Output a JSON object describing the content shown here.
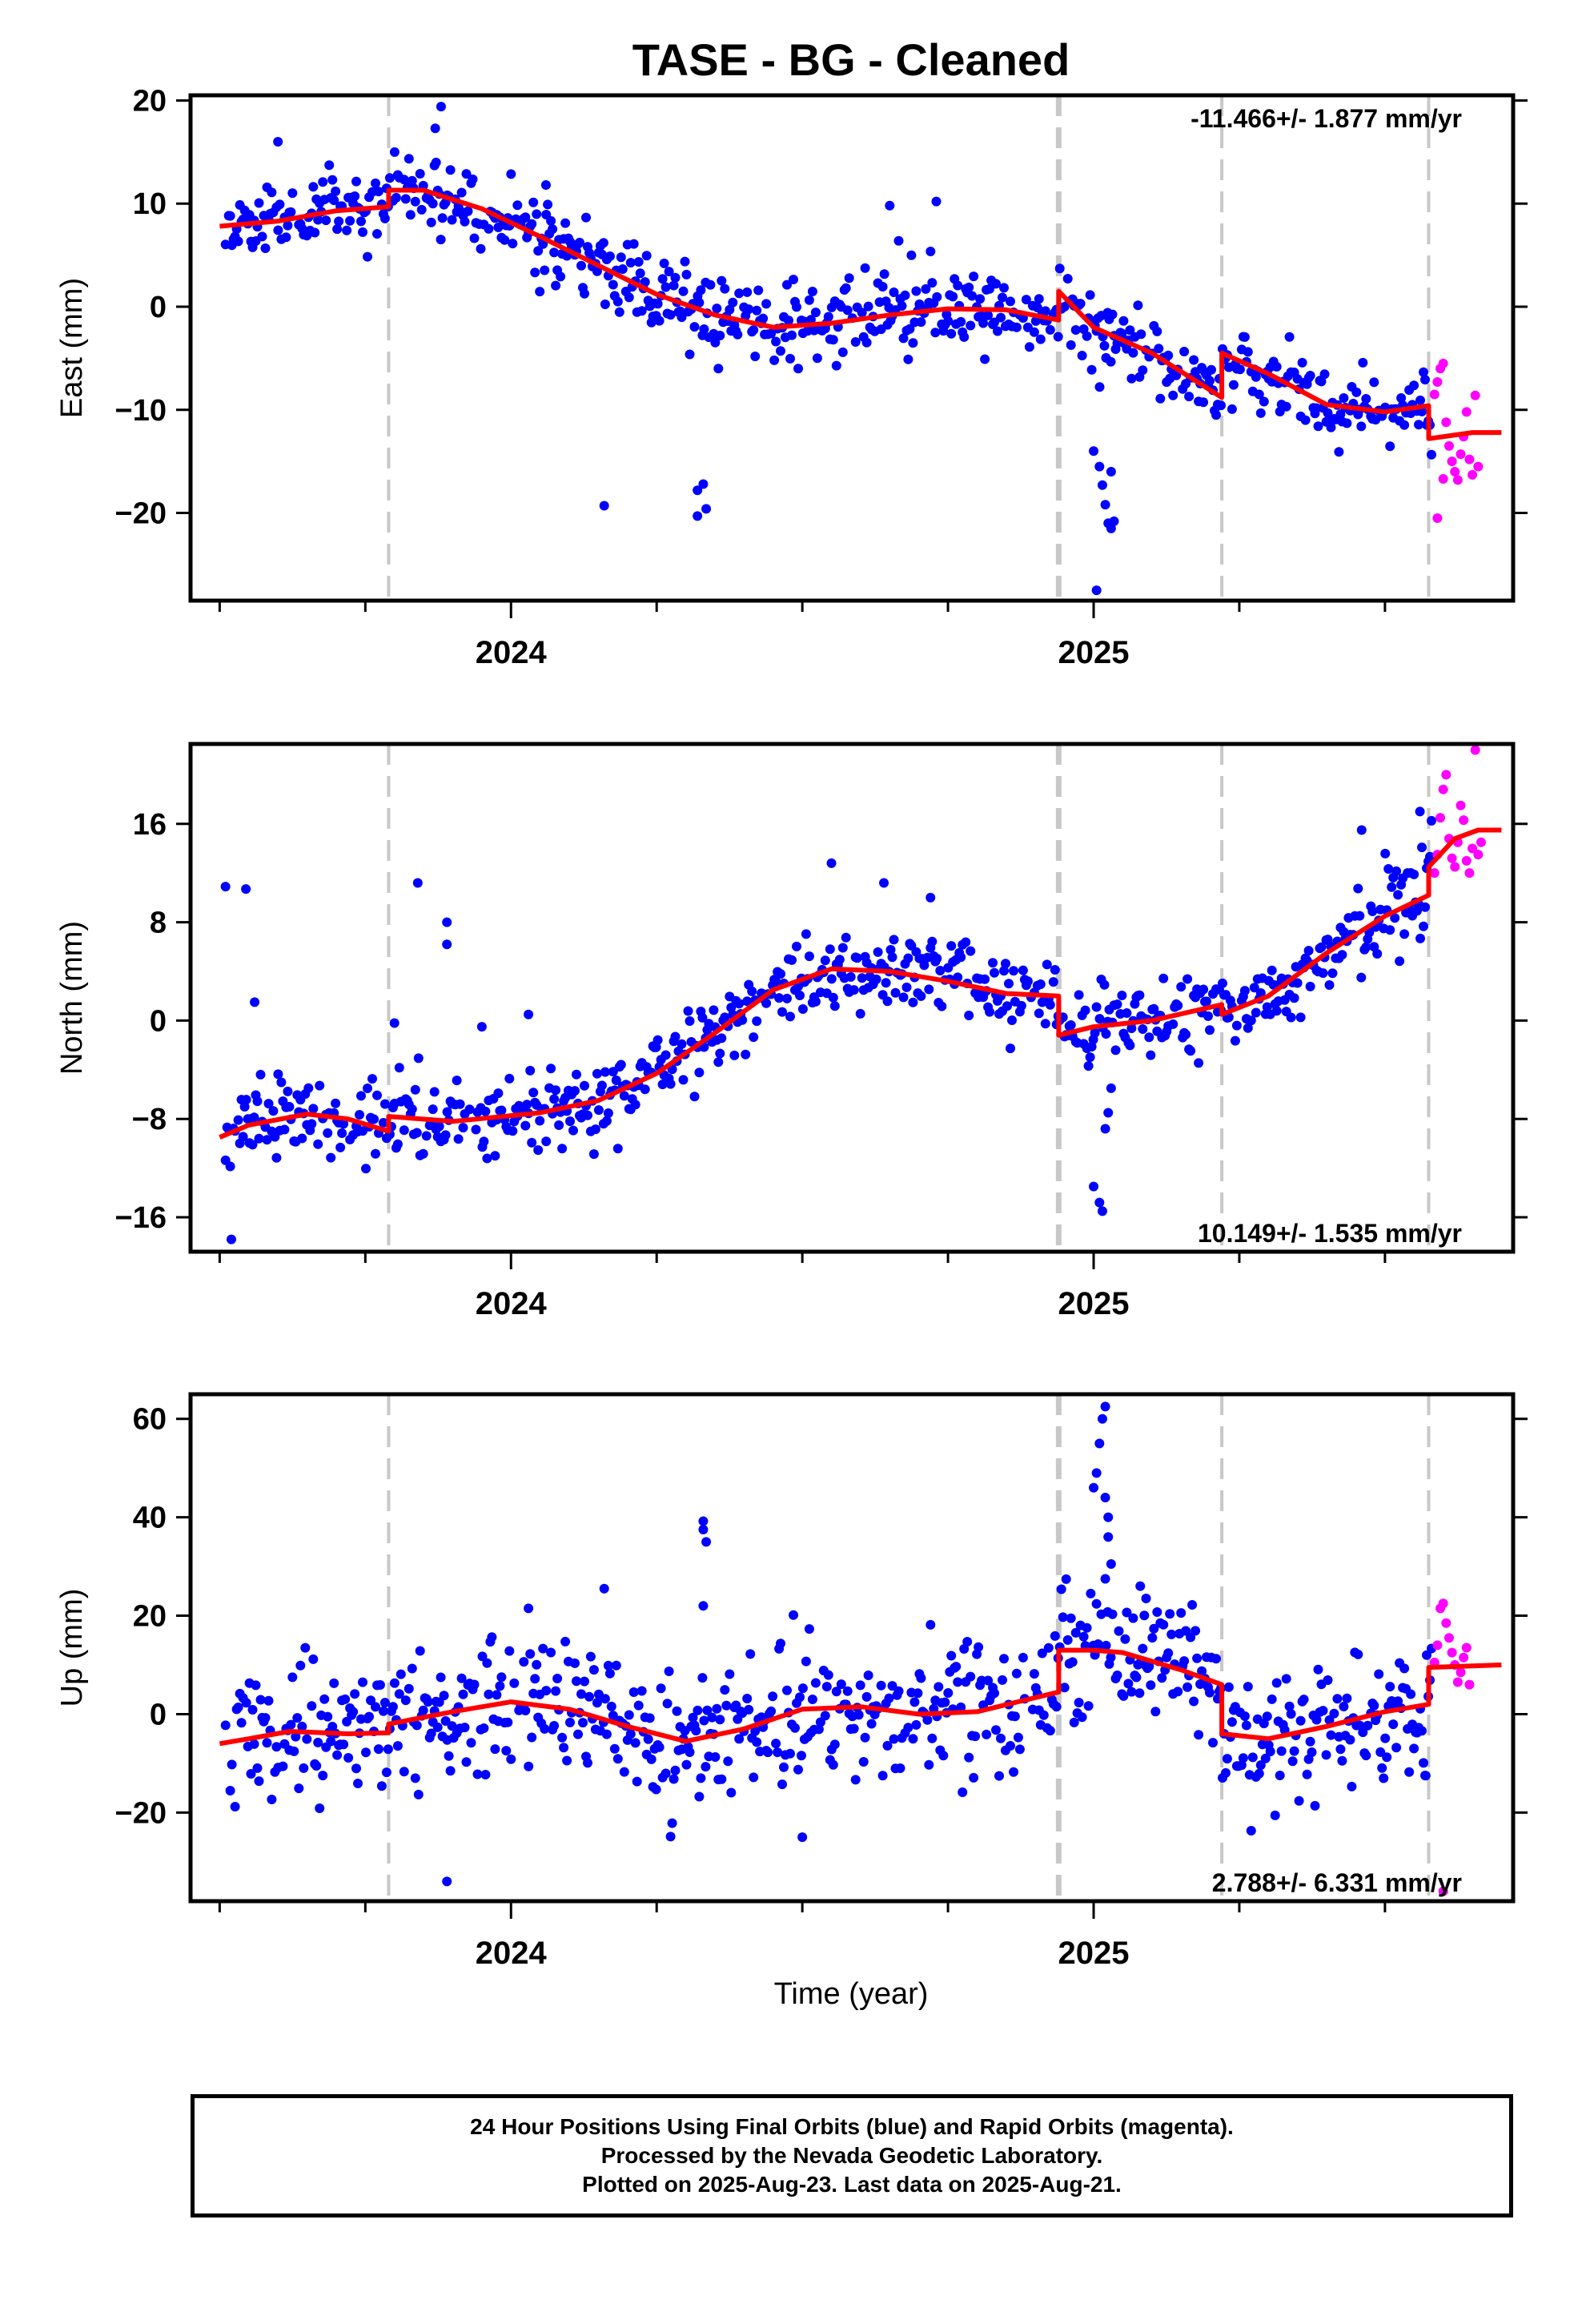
{
  "title": "TASE  - BG - Cleaned",
  "footer": {
    "line1": "24 Hour Positions Using Final Orbits (blue) and Rapid Orbits (magenta).",
    "line2": "Processed by the Nevada Geodetic Laboratory.",
    "line3": "Plotted on 2025-Aug-23. Last data on 2025-Aug-21."
  },
  "colors": {
    "final": "#0000ff",
    "rapid": "#ff00ff",
    "model": "#ff0000",
    "breaks": "#c8c8c8"
  },
  "chart_data": [
    {
      "type": "scatter",
      "ylabel": "East (mm)",
      "xlabel": "",
      "rate_label": "-11.466+/- 1.877 mm/yr",
      "xlim": [
        2023.45,
        2025.72
      ],
      "ylim": [
        -28.5,
        20.5
      ],
      "yticks": [
        20,
        10,
        0,
        -10,
        -20
      ],
      "xticks_major": [
        2024,
        2025
      ],
      "xtick_labels": [
        "2024",
        "2025"
      ],
      "xticks_minor": [
        2023.5,
        2023.75,
        2024.25,
        2024.5,
        2024.75,
        2025.25,
        2025.5
      ],
      "breaks": [
        2023.79,
        2024.94,
        2025.22,
        2025.575
      ],
      "rapid_start": 2025.58,
      "model": [
        [
          2023.5,
          7.8
        ],
        [
          2023.6,
          8.3
        ],
        [
          2023.7,
          9.3
        ],
        [
          2023.79,
          9.7
        ],
        [
          2023.79,
          11.3
        ],
        [
          2023.85,
          11.3
        ],
        [
          2023.95,
          9.5
        ],
        [
          2024.05,
          6.8
        ],
        [
          2024.15,
          4.0
        ],
        [
          2024.25,
          1.2
        ],
        [
          2024.35,
          -0.8
        ],
        [
          2024.45,
          -2.0
        ],
        [
          2024.55,
          -1.6
        ],
        [
          2024.65,
          -0.8
        ],
        [
          2024.75,
          -0.2
        ],
        [
          2024.85,
          -0.3
        ],
        [
          2024.94,
          -1.3
        ],
        [
          2024.94,
          1.5
        ],
        [
          2025.0,
          -2.0
        ],
        [
          2025.1,
          -4.5
        ],
        [
          2025.22,
          -8.8
        ],
        [
          2025.22,
          -4.5
        ],
        [
          2025.3,
          -6.5
        ],
        [
          2025.4,
          -9.5
        ],
        [
          2025.5,
          -10.2
        ],
        [
          2025.575,
          -9.6
        ],
        [
          2025.575,
          -12.8
        ],
        [
          2025.65,
          -12.2
        ],
        [
          2025.7,
          -12.2
        ]
      ],
      "outliers": [
        [
          2024.16,
          -19.3
        ],
        [
          2024.33,
          -17.2
        ],
        [
          2024.32,
          -17.8
        ],
        [
          2024.32,
          -20.3
        ],
        [
          2024.335,
          -19.6
        ],
        [
          2025.0,
          -14.0
        ],
        [
          2025.01,
          -15.5
        ],
        [
          2025.015,
          -17.3
        ],
        [
          2025.02,
          -19.2
        ],
        [
          2025.025,
          -21.0
        ],
        [
          2025.03,
          -21.5
        ],
        [
          2025.035,
          -20.8
        ],
        [
          2025.03,
          -16.0
        ],
        [
          2025.005,
          -27.5
        ],
        [
          2024.06,
          11.8
        ],
        [
          2024.73,
          10.2
        ],
        [
          2024.65,
          9.8
        ],
        [
          2023.88,
          19.4
        ],
        [
          2023.87,
          17.3
        ],
        [
          2023.6,
          16.0
        ]
      ],
      "rapid": [
        [
          2025.585,
          -8.5
        ],
        [
          2025.59,
          -7.3
        ],
        [
          2025.595,
          -6.0
        ],
        [
          2025.6,
          -5.5
        ],
        [
          2025.605,
          -11.2
        ],
        [
          2025.61,
          -13.5
        ],
        [
          2025.615,
          -15.0
        ],
        [
          2025.62,
          -16.0
        ],
        [
          2025.625,
          -16.8
        ],
        [
          2025.63,
          -14.3
        ],
        [
          2025.635,
          -12.6
        ],
        [
          2025.64,
          -10.2
        ],
        [
          2025.645,
          -14.8
        ],
        [
          2025.65,
          -16.3
        ],
        [
          2025.655,
          -8.6
        ],
        [
          2025.66,
          -15.5
        ],
        [
          2025.59,
          -20.5
        ],
        [
          2025.6,
          -16.7
        ]
      ],
      "scatter_sd": 1.9,
      "seed": 11
    },
    {
      "type": "scatter",
      "ylabel": "North (mm)",
      "xlabel": "",
      "rate_label": "10.149+/- 1.535 mm/yr",
      "xlim": [
        2023.45,
        2025.72
      ],
      "ylim": [
        -18.8,
        22.5
      ],
      "yticks": [
        16,
        8,
        0,
        -8,
        -16
      ],
      "xticks_major": [
        2024,
        2025
      ],
      "xtick_labels": [
        "2024",
        "2025"
      ],
      "xticks_minor": [
        2023.5,
        2023.75,
        2024.25,
        2024.5,
        2024.75,
        2025.25,
        2025.5
      ],
      "breaks": [
        2023.79,
        2024.94,
        2025.22,
        2025.575
      ],
      "rapid_start": 2025.58,
      "model": [
        [
          2023.5,
          -9.5
        ],
        [
          2023.55,
          -8.5
        ],
        [
          2023.65,
          -7.6
        ],
        [
          2023.72,
          -8.0
        ],
        [
          2023.79,
          -9.0
        ],
        [
          2023.79,
          -7.8
        ],
        [
          2023.9,
          -8.2
        ],
        [
          2024.05,
          -7.5
        ],
        [
          2024.15,
          -6.5
        ],
        [
          2024.25,
          -4.3
        ],
        [
          2024.35,
          -1.0
        ],
        [
          2024.45,
          2.5
        ],
        [
          2024.55,
          4.2
        ],
        [
          2024.65,
          4.0
        ],
        [
          2024.75,
          3.2
        ],
        [
          2024.85,
          2.2
        ],
        [
          2024.94,
          2.0
        ],
        [
          2024.94,
          -1.2
        ],
        [
          2025.0,
          -0.5
        ],
        [
          2025.1,
          0.0
        ],
        [
          2025.22,
          1.3
        ],
        [
          2025.22,
          0.5
        ],
        [
          2025.3,
          2.0
        ],
        [
          2025.4,
          5.5
        ],
        [
          2025.5,
          8.5
        ],
        [
          2025.575,
          10.2
        ],
        [
          2025.575,
          12.5
        ],
        [
          2025.62,
          14.8
        ],
        [
          2025.66,
          15.5
        ],
        [
          2025.7,
          15.5
        ]
      ],
      "outliers": [
        [
          2023.51,
          10.9
        ],
        [
          2023.545,
          10.7
        ],
        [
          2023.56,
          1.5
        ],
        [
          2023.52,
          -17.8
        ],
        [
          2023.8,
          -0.2
        ],
        [
          2023.84,
          11.2
        ],
        [
          2023.89,
          8.0
        ],
        [
          2023.89,
          6.2
        ],
        [
          2023.95,
          -0.5
        ],
        [
          2024.03,
          0.5
        ],
        [
          2024.55,
          12.8
        ],
        [
          2024.64,
          11.2
        ],
        [
          2024.72,
          10.0
        ],
        [
          2025.0,
          -13.5
        ],
        [
          2025.01,
          -14.8
        ],
        [
          2025.015,
          -15.5
        ],
        [
          2025.02,
          -8.8
        ],
        [
          2025.03,
          -5.5
        ],
        [
          2025.025,
          -7.5
        ],
        [
          2025.46,
          15.5
        ],
        [
          2025.56,
          17.0
        ]
      ],
      "rapid": [
        [
          2025.585,
          12.0
        ],
        [
          2025.59,
          13.5
        ],
        [
          2025.595,
          16.5
        ],
        [
          2025.6,
          18.8
        ],
        [
          2025.605,
          20.0
        ],
        [
          2025.61,
          14.8
        ],
        [
          2025.615,
          13.2
        ],
        [
          2025.62,
          12.5
        ],
        [
          2025.625,
          14.5
        ],
        [
          2025.63,
          17.5
        ],
        [
          2025.635,
          16.3
        ],
        [
          2025.64,
          13.0
        ],
        [
          2025.645,
          12.0
        ],
        [
          2025.65,
          14.0
        ],
        [
          2025.655,
          22.0
        ],
        [
          2025.66,
          13.5
        ],
        [
          2025.665,
          14.5
        ]
      ],
      "scatter_sd": 1.6,
      "seed": 23
    },
    {
      "type": "scatter",
      "ylabel": "Up (mm)",
      "xlabel": "Time (year)",
      "rate_label": "2.788+/- 6.331 mm/yr",
      "xlim": [
        2023.45,
        2025.72
      ],
      "ylim": [
        -38,
        65
      ],
      "yticks": [
        60,
        40,
        20,
        0,
        -20
      ],
      "xticks_major": [
        2024,
        2025
      ],
      "xtick_labels": [
        "2024",
        "2025"
      ],
      "xticks_minor": [
        2023.5,
        2023.75,
        2024.25,
        2024.5,
        2024.75,
        2025.25,
        2025.5
      ],
      "breaks": [
        2023.79,
        2024.94,
        2025.22,
        2025.575
      ],
      "rapid_start": 2025.58,
      "model": [
        [
          2023.5,
          -6.0
        ],
        [
          2023.55,
          -5.0
        ],
        [
          2023.62,
          -3.5
        ],
        [
          2023.72,
          -4.0
        ],
        [
          2023.79,
          -3.8
        ],
        [
          2023.79,
          -2.0
        ],
        [
          2023.9,
          0.5
        ],
        [
          2024.0,
          2.5
        ],
        [
          2024.1,
          1.0
        ],
        [
          2024.2,
          -2.5
        ],
        [
          2024.3,
          -5.5
        ],
        [
          2024.4,
          -3.0
        ],
        [
          2024.5,
          1.0
        ],
        [
          2024.6,
          1.5
        ],
        [
          2024.7,
          0.0
        ],
        [
          2024.8,
          0.5
        ],
        [
          2024.94,
          4.5
        ],
        [
          2024.94,
          13.0
        ],
        [
          2025.0,
          13.0
        ],
        [
          2025.05,
          12.5
        ],
        [
          2025.15,
          9.0
        ],
        [
          2025.22,
          6.0
        ],
        [
          2025.22,
          -4.0
        ],
        [
          2025.3,
          -5.0
        ],
        [
          2025.4,
          -2.5
        ],
        [
          2025.5,
          0.5
        ],
        [
          2025.575,
          2.0
        ],
        [
          2025.575,
          9.5
        ],
        [
          2025.7,
          10.0
        ]
      ],
      "outliers": [
        [
          2024.33,
          39.2
        ],
        [
          2024.33,
          37.5
        ],
        [
          2024.335,
          35.0
        ],
        [
          2024.33,
          22.0
        ],
        [
          2023.89,
          -34.0
        ],
        [
          2024.03,
          21.5
        ],
        [
          2024.16,
          25.5
        ],
        [
          2025.02,
          62.5
        ],
        [
          2025.015,
          60.0
        ],
        [
          2025.01,
          55.0
        ],
        [
          2025.005,
          49.0
        ],
        [
          2025.0,
          46.0
        ],
        [
          2025.02,
          44.0
        ],
        [
          2025.025,
          40.0
        ],
        [
          2025.025,
          36.0
        ],
        [
          2025.03,
          30.5
        ],
        [
          2025.02,
          27.5
        ],
        [
          2024.995,
          24.5
        ],
        [
          2025.08,
          26.0
        ],
        [
          2025.09,
          23.5
        ],
        [
          2024.5,
          -25.0
        ],
        [
          2025.57,
          -12.5
        ]
      ],
      "rapid": [
        [
          2025.585,
          10.5
        ],
        [
          2025.59,
          14.0
        ],
        [
          2025.595,
          21.5
        ],
        [
          2025.6,
          22.5
        ],
        [
          2025.605,
          18.5
        ],
        [
          2025.61,
          15.5
        ],
        [
          2025.615,
          12.5
        ],
        [
          2025.62,
          10.0
        ],
        [
          2025.625,
          6.5
        ],
        [
          2025.63,
          8.5
        ],
        [
          2025.635,
          11.5
        ],
        [
          2025.64,
          13.5
        ],
        [
          2025.645,
          6.0
        ],
        [
          2025.6,
          -36.0
        ]
      ],
      "scatter_sd": 6.5,
      "seed": 37
    }
  ]
}
